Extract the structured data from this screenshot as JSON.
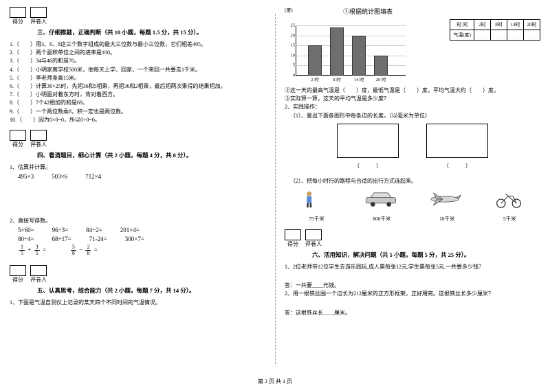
{
  "left": {
    "section3": {
      "score": "得分",
      "reviewer": "评卷人",
      "title": "三、仔细推敲，正确判断（共 10 小题，每题 1.5 分，共 15 分）。",
      "items": [
        "1.（　　）用3、6、8这三个数字组成的最大三位数与最小三位数，它们相差495。",
        "2.（　　）两个面积单位之间的进率是100。",
        "3.（　　）34与46的和是70。",
        "4.（　　）小明家离学校500米，他每天上学、回家，一个来回一共要走1千米。",
        "5.（　　）李老师身高15米。",
        "6.（　　）计算36×25时，先把36和5相乘，再把36和2相乘，最后把两次乘得的结果相加。",
        "7.（　　）小明面对着东方时，背对着西方。",
        "8.（　　）7个42相加的和是69。",
        "9.（　　）一个两位数乘8，积一定也是两位数。",
        "10.（　　）因为0×0=0，所以0÷0=0。"
      ]
    },
    "section4": {
      "title": "四、看清题目，细心计算（共 2 小题，每题 4 分，共 8 分）。",
      "q1_label": "1、估算并计算。",
      "q1_items": [
        "495×3",
        "503×6",
        "712×4"
      ],
      "q2_label": "2、直接写得数。",
      "q2_rows": [
        [
          "5×60=",
          "96÷3=",
          "84÷2=",
          "201×4="
        ],
        [
          "80÷4=",
          "68+17=",
          "71-24=",
          "300×7="
        ]
      ],
      "frac1": {
        "a_n": "1",
        "a_d": "5",
        "b_n": "3",
        "b_d": "5"
      },
      "frac2": {
        "a_n": "5",
        "a_d": "8",
        "b_n": "2",
        "b_d": "8"
      }
    },
    "section5": {
      "title": "五、认真思考，综合能力（共 2 小题，每题 7 分，共 14 分）。",
      "q1": "1、下面是气温自测仪上记录的某天四个不同时间的气温情况。"
    }
  },
  "right": {
    "chart": {
      "unit": "(度)",
      "title": "①根据统计图填表",
      "y_ticks": [
        "25",
        "20",
        "15",
        "10",
        "5",
        "0"
      ],
      "y_top": 25,
      "grid_color": "#cccccc",
      "bar_color": "#6e6e6e",
      "bars": [
        {
          "x": 34,
          "h": 15,
          "label": "2 时"
        },
        {
          "x": 66,
          "h": 24,
          "label": "8 时"
        },
        {
          "x": 98,
          "h": 20,
          "label": "14 时"
        },
        {
          "x": 130,
          "h": 10,
          "label": "20 时"
        }
      ]
    },
    "table": {
      "r1": [
        "时  间",
        "2时",
        "8时",
        "14时",
        "20时"
      ],
      "r2": [
        "气温(度)",
        "",
        "",
        "",
        ""
      ]
    },
    "chart_q": [
      "②这一天的最高气温是（　　）度，最低气温是（　　）度，平均气温大约（　　）度。",
      "③实际算一算，这天的平均气温是多少度？"
    ],
    "practice": {
      "head": "2、实践操作：",
      "q1": "（1）、量出下面各图形中每条边的长度。（以毫米为单位）",
      "cap1": "（　　　）",
      "cap2": "（　　　）",
      "q2": "（2）、把每小时行的路程与合适的出行方式连起来。"
    },
    "travel": [
      {
        "svg": "person",
        "label": "75千米"
      },
      {
        "svg": "car",
        "label": "800千米"
      },
      {
        "svg": "plane",
        "label": "18千米"
      },
      {
        "svg": "bike",
        "label": "5千米"
      }
    ],
    "section6": {
      "title": "六、活用知识，解决问题（共 5 小题，每题 5 分，共 25 分）。",
      "q1": "1、2位老师带12位学生去游乐园玩,成人票每张12元,学生票每张5元,一共要多少钱？",
      "a1": "答：一共要____元钱。",
      "q2": "2、用一根铁丝围一个边长为212厘米的正方形框架，正好用完。这根铁丝长多少厘米？",
      "a2": "答：这根铁丝长____厘米。"
    }
  },
  "footer": "第 2 页  共 4 页"
}
